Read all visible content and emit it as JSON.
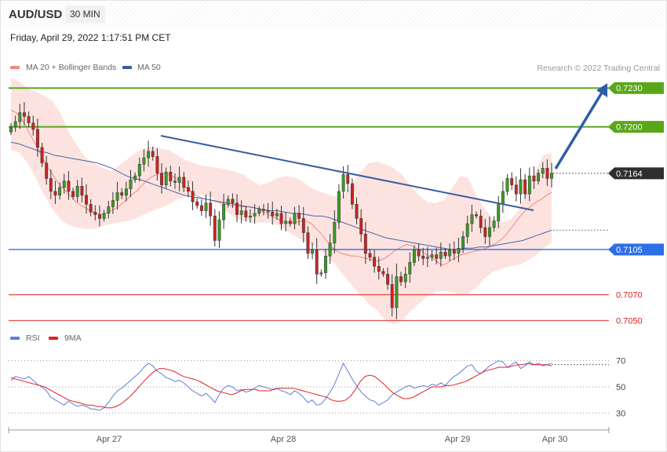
{
  "header": {
    "pair": "AUD/USD",
    "timeframe": "30 MIN",
    "datetime": "Friday, April 29, 2022 1:17:51 PM CET"
  },
  "legend_main": [
    {
      "label": "MA 20 + Bollinger Bands",
      "color": "#f08a80"
    },
    {
      "label": "MA 50",
      "color": "#3a5da0"
    }
  ],
  "credit": "Research © 2022 Trading Central",
  "legend_rsi": [
    {
      "label": "RSI",
      "color": "#5b7fd6"
    },
    {
      "label": "9MA",
      "color": "#e02020"
    }
  ],
  "colors": {
    "resistance": "#5aa619",
    "pivot": "#2e6ee8",
    "support": "#e45050",
    "current": "#333333",
    "candle_up": "#3a9b22",
    "candle_down": "#cc2222",
    "trendline": "#3a5da0"
  },
  "chart_data": [
    {
      "type": "candlestick",
      "title": "AUD/USD",
      "x_ticks": [
        "Apr 27",
        "Apr 28",
        "Apr 29",
        "Apr 30"
      ],
      "ylim": [
        0.7043,
        0.7252
      ],
      "levels": [
        {
          "label": "0.7230",
          "value": 0.723,
          "kind": "resistance"
        },
        {
          "label": "0.7200",
          "value": 0.72,
          "kind": "resistance"
        },
        {
          "label": "0.7164",
          "value": 0.7164,
          "kind": "current"
        },
        {
          "label": "0.7105",
          "value": 0.7105,
          "kind": "pivot"
        },
        {
          "label": "0.7070",
          "value": 0.707,
          "kind": "support"
        },
        {
          "label": "0.7050",
          "value": 0.705,
          "kind": "support"
        }
      ],
      "closes": [
        0.72,
        0.7204,
        0.7211,
        0.7208,
        0.7203,
        0.7198,
        0.7184,
        0.7172,
        0.716,
        0.715,
        0.7147,
        0.7153,
        0.7158,
        0.715,
        0.7146,
        0.7154,
        0.7147,
        0.714,
        0.7134,
        0.7132,
        0.7129,
        0.7133,
        0.7138,
        0.7143,
        0.7149,
        0.7147,
        0.7152,
        0.7159,
        0.7162,
        0.7171,
        0.7176,
        0.7181,
        0.7177,
        0.7164,
        0.7155,
        0.7165,
        0.7158,
        0.7157,
        0.7161,
        0.7153,
        0.715,
        0.7142,
        0.7139,
        0.7135,
        0.7141,
        0.7131,
        0.7112,
        0.7128,
        0.714,
        0.7144,
        0.7141,
        0.7132,
        0.7135,
        0.713,
        0.7131,
        0.7133,
        0.7136,
        0.7135,
        0.7134,
        0.7131,
        0.7133,
        0.7125,
        0.7127,
        0.7125,
        0.7133,
        0.7129,
        0.7118,
        0.7102,
        0.7105,
        0.7086,
        0.7087,
        0.71,
        0.711,
        0.7126,
        0.715,
        0.7163,
        0.7156,
        0.714,
        0.7129,
        0.7117,
        0.7102,
        0.7099,
        0.7092,
        0.7088,
        0.7086,
        0.7078,
        0.706,
        0.7084,
        0.708,
        0.7086,
        0.7095,
        0.7105,
        0.71,
        0.7098,
        0.7099,
        0.7101,
        0.7098,
        0.7103,
        0.71,
        0.7105,
        0.7102,
        0.7106,
        0.7115,
        0.7125,
        0.7132,
        0.7131,
        0.7122,
        0.7115,
        0.7122,
        0.7127,
        0.714,
        0.715,
        0.716,
        0.7155,
        0.7148,
        0.7159,
        0.7148,
        0.7162,
        0.7158,
        0.7164,
        0.7168,
        0.716,
        0.7164
      ],
      "ma20": [
        0.7213,
        0.7211,
        0.7207,
        0.72,
        0.7193,
        0.7186,
        0.7178,
        0.7171,
        0.7165,
        0.7159,
        0.7154,
        0.715,
        0.7146,
        0.7142,
        0.7139,
        0.7137,
        0.7134,
        0.7133,
        0.7132,
        0.7133,
        0.7135,
        0.7137,
        0.714,
        0.7143,
        0.7147,
        0.715,
        0.7154,
        0.7158,
        0.7161,
        0.7163,
        0.7164,
        0.7164,
        0.7162,
        0.716,
        0.7157,
        0.7153,
        0.715,
        0.7147,
        0.7145,
        0.7144,
        0.7143,
        0.7142,
        0.7141,
        0.714,
        0.7139,
        0.7139,
        0.7138,
        0.7138,
        0.7138,
        0.7137,
        0.7135,
        0.7133,
        0.7131,
        0.7129,
        0.7127,
        0.7126,
        0.7126,
        0.7126,
        0.7127,
        0.7127,
        0.7125,
        0.7121,
        0.7117,
        0.7112,
        0.7107,
        0.7104,
        0.7102,
        0.7101,
        0.71,
        0.71,
        0.7099,
        0.7098,
        0.7097,
        0.7096,
        0.7097,
        0.7099,
        0.7102,
        0.7105,
        0.7107,
        0.7109,
        0.7108,
        0.7106,
        0.7104,
        0.7101,
        0.7099,
        0.7096,
        0.7093,
        0.7094,
        0.7097,
        0.7099,
        0.7101,
        0.7102,
        0.7103,
        0.7104,
        0.7105,
        0.7106,
        0.7108,
        0.711,
        0.7113,
        0.7117,
        0.7122,
        0.7127,
        0.7132,
        0.7136,
        0.7139,
        0.7142,
        0.7144,
        0.7147,
        0.7149
      ],
      "ma50": [
        0.7188,
        0.7187,
        0.7185,
        0.7183,
        0.7181,
        0.718,
        0.7178,
        0.7177,
        0.7176,
        0.7175,
        0.7174,
        0.7173,
        0.7172,
        0.717,
        0.7168,
        0.7165,
        0.7162,
        0.716,
        0.7159,
        0.7157,
        0.7155,
        0.7153,
        0.7151,
        0.7149,
        0.7147,
        0.7146,
        0.7145,
        0.7144,
        0.7143,
        0.7142,
        0.7141,
        0.714,
        0.7139,
        0.7138,
        0.7137,
        0.7136,
        0.7135,
        0.7135,
        0.7134,
        0.7133,
        0.7133,
        0.7132,
        0.7131,
        0.7131,
        0.713,
        0.7128,
        0.7126,
        0.7124,
        0.7122,
        0.712,
        0.7118,
        0.7116,
        0.7114,
        0.7113,
        0.7112,
        0.7111,
        0.711,
        0.7109,
        0.7108,
        0.7107,
        0.7106,
        0.7105,
        0.7105,
        0.7106,
        0.7106,
        0.7107,
        0.7107,
        0.7108,
        0.7109,
        0.711,
        0.7111,
        0.7112,
        0.7114,
        0.7116,
        0.7118,
        0.712
      ],
      "bb_upper": [
        0.7238,
        0.7235,
        0.723,
        0.7227,
        0.7224,
        0.722,
        0.721,
        0.7195,
        0.7185,
        0.7176,
        0.7172,
        0.7168,
        0.7166,
        0.717,
        0.7175,
        0.718,
        0.7183,
        0.7185,
        0.7183,
        0.7182,
        0.7178,
        0.7174,
        0.7172,
        0.717,
        0.7169,
        0.7168,
        0.7167,
        0.7165,
        0.7163,
        0.7158,
        0.7155,
        0.7157,
        0.716,
        0.7162,
        0.7161,
        0.7158,
        0.7153,
        0.715,
        0.7148,
        0.7146,
        0.7148,
        0.7156,
        0.7165,
        0.7172,
        0.7173,
        0.7171,
        0.7168,
        0.7163,
        0.7155,
        0.7147,
        0.7142,
        0.7141,
        0.7143,
        0.7152,
        0.7162,
        0.716,
        0.7146,
        0.7136,
        0.7128,
        0.7126,
        0.7128,
        0.7135,
        0.715,
        0.7165,
        0.7178,
        0.718
      ],
      "bb_lower": [
        0.7182,
        0.718,
        0.7172,
        0.716,
        0.7147,
        0.7136,
        0.7128,
        0.7124,
        0.7122,
        0.7121,
        0.7121,
        0.7123,
        0.7125,
        0.7126,
        0.7127,
        0.7129,
        0.7132,
        0.7135,
        0.7137,
        0.714,
        0.7144,
        0.7146,
        0.7148,
        0.7147,
        0.7146,
        0.714,
        0.7134,
        0.7129,
        0.7127,
        0.7126,
        0.7126,
        0.7126,
        0.7124,
        0.712,
        0.7116,
        0.7112,
        0.7109,
        0.7106,
        0.71,
        0.7093,
        0.7085,
        0.7077,
        0.707,
        0.7063,
        0.7058,
        0.705,
        0.7047,
        0.705,
        0.7057,
        0.7063,
        0.7068,
        0.7072,
        0.7073,
        0.7072,
        0.707,
        0.7071,
        0.7076,
        0.7083,
        0.7088,
        0.709,
        0.7092,
        0.7093,
        0.7096,
        0.71,
        0.7106,
        0.711
      ]
    },
    {
      "type": "line",
      "title": "RSI",
      "yticks": [
        70,
        50,
        30
      ],
      "ylim": [
        20,
        80
      ],
      "series": [
        {
          "name": "RSI",
          "color": "#5b7fd6",
          "values": [
            55,
            58,
            57,
            56,
            58,
            55,
            52,
            50,
            47,
            42,
            40,
            38,
            36,
            39,
            37,
            35,
            36,
            35,
            33,
            33,
            32,
            34,
            38,
            43,
            47,
            49,
            52,
            55,
            58,
            61,
            65,
            68,
            66,
            62,
            60,
            57,
            56,
            54,
            55,
            53,
            50,
            47,
            45,
            43,
            45,
            42,
            38,
            44,
            49,
            51,
            50,
            47,
            48,
            46,
            47,
            49,
            51,
            50,
            49,
            48,
            49,
            47,
            46,
            44,
            47,
            45,
            42,
            38,
            40,
            36,
            37,
            41,
            46,
            52,
            60,
            68,
            62,
            56,
            51,
            46,
            43,
            40,
            39,
            36,
            38,
            40,
            44,
            46,
            48,
            50,
            51,
            49,
            50,
            51,
            50,
            52,
            51,
            53,
            51,
            55,
            58,
            60,
            63,
            66,
            67,
            62,
            60,
            63,
            66,
            68,
            70,
            69,
            65,
            67,
            69,
            64,
            66,
            69,
            67,
            68,
            66,
            67,
            68
          ]
        },
        {
          "name": "9MA",
          "color": "#e02020",
          "values": [
            57,
            56,
            55,
            54,
            53,
            52,
            51,
            50,
            48,
            46,
            44,
            42,
            40,
            39,
            38,
            37,
            36,
            36,
            35,
            35,
            34,
            34,
            35,
            37,
            40,
            43,
            47,
            51,
            55,
            59,
            62,
            64,
            64,
            63,
            62,
            60,
            58,
            57,
            56,
            55,
            53,
            51,
            49,
            47,
            46,
            45,
            44,
            45,
            47,
            48,
            48,
            48,
            47,
            47,
            47,
            48,
            49,
            49,
            49,
            49,
            48,
            47,
            46,
            45,
            44,
            43,
            42,
            40,
            39,
            39,
            40,
            43,
            48,
            54,
            58,
            59,
            58,
            55,
            52,
            48,
            45,
            43,
            41,
            41,
            42,
            44,
            46,
            48,
            50,
            50,
            50,
            51,
            51,
            52,
            53,
            54,
            56,
            58,
            60,
            62,
            63,
            64,
            65,
            65,
            65,
            66,
            67,
            67,
            68,
            67,
            67,
            67,
            67,
            66
          ]
        }
      ]
    }
  ]
}
